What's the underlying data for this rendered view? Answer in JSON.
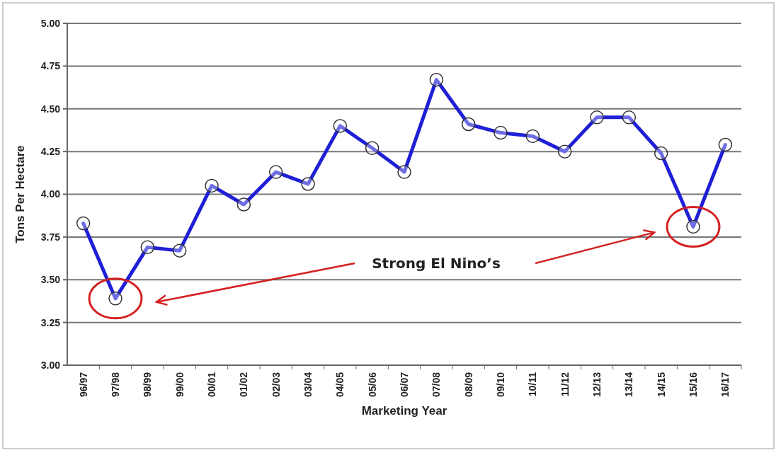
{
  "chart_data": {
    "type": "line",
    "xlabel": "Marketing Year",
    "ylabel": "Tons Per Hectare",
    "categories": [
      "96/97",
      "97/98",
      "98/99",
      "99/00",
      "00/01",
      "01/02",
      "02/03",
      "03/04",
      "04/05",
      "05/06",
      "06/07",
      "07/08",
      "08/09",
      "09/10",
      "10/11",
      "11/12",
      "12/13",
      "13/14",
      "14/15",
      "15/16",
      "16/17"
    ],
    "series": [
      {
        "color": "#1f1fd6",
        "values": [
          3.83,
          3.39,
          3.69,
          3.67,
          4.05,
          3.94,
          4.13,
          4.06,
          4.4,
          4.27,
          4.13,
          4.67,
          4.41,
          4.36,
          4.34,
          4.25,
          4.45,
          4.45,
          4.24,
          3.81,
          4.29
        ]
      }
    ],
    "ylim": [
      3,
      5
    ],
    "yticks": [
      {
        "value": 3,
        "label": "3.00"
      },
      {
        "value": 3.25,
        "label": "3.25"
      },
      {
        "value": 3.5,
        "label": "3.50"
      },
      {
        "value": 3.75,
        "label": "3.75"
      },
      {
        "value": 4,
        "label": "4.00"
      },
      {
        "value": 4.25,
        "label": "4.25"
      },
      {
        "value": 4.5,
        "label": "4.50"
      },
      {
        "value": 4.75,
        "label": "4.75"
      },
      {
        "value": 5,
        "label": "5.00"
      }
    ],
    "grid": "y",
    "marker": "circle",
    "line_style": "solid",
    "annotations": [
      "Strong El Nino’s"
    ]
  }
}
